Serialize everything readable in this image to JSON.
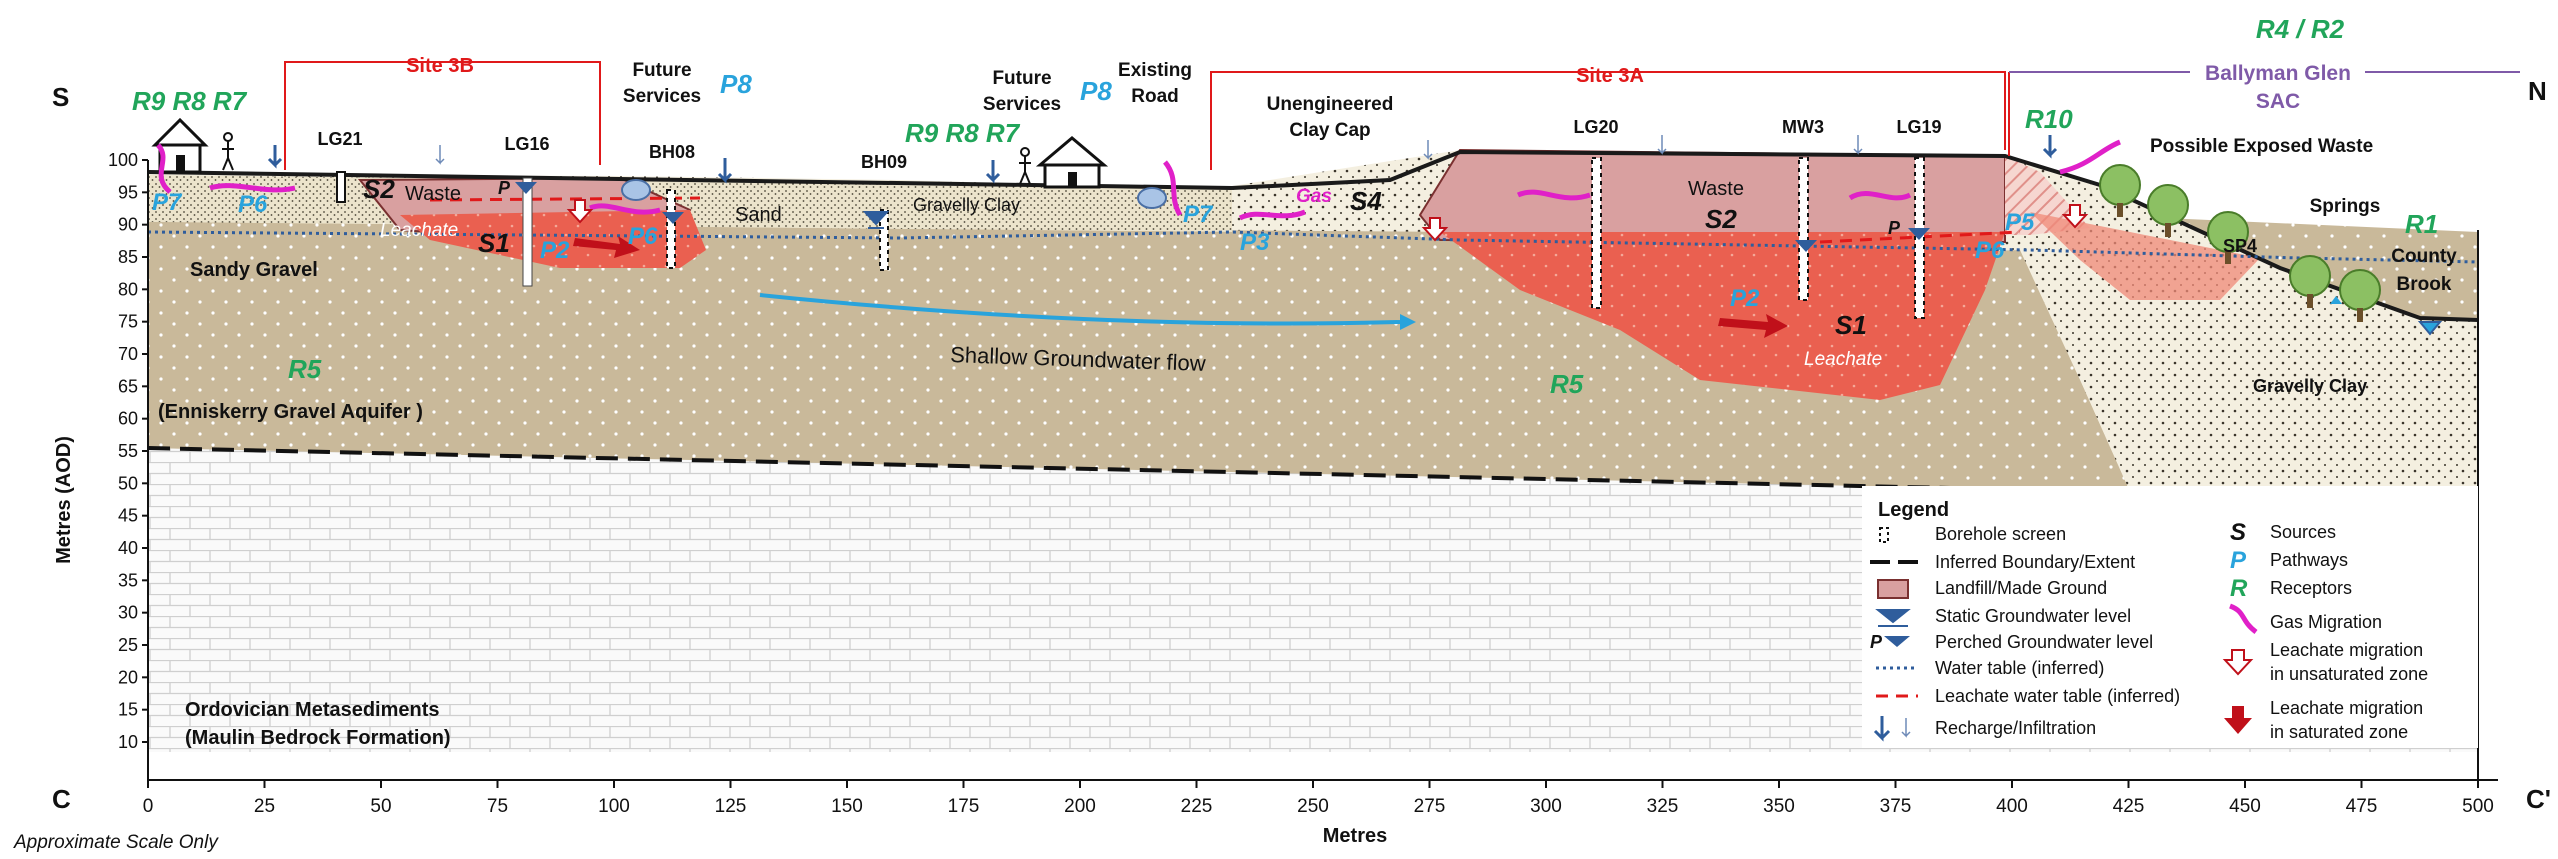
{
  "orientation": {
    "south": "S",
    "north": "N",
    "section_start": "C",
    "section_end": "C'"
  },
  "axes": {
    "ylabel": "Metres (AOD)",
    "xlabel": "Metres",
    "y_ticks": [
      10,
      15,
      20,
      25,
      30,
      35,
      40,
      45,
      50,
      55,
      60,
      65,
      70,
      75,
      80,
      85,
      90,
      95,
      100
    ],
    "x_ticks": [
      0,
      25,
      50,
      75,
      100,
      125,
      150,
      175,
      200,
      225,
      250,
      275,
      300,
      325,
      350,
      375,
      400,
      425,
      450,
      475,
      500
    ],
    "ylim": [
      10,
      100
    ],
    "xlim": [
      0,
      500
    ],
    "scale_note": "Approximate Scale Only"
  },
  "sites": {
    "site_3b": "Site 3B",
    "site_3a": "Site 3A"
  },
  "protected_area": {
    "receptor": "R4 / R2",
    "name_line1": "Ballyman Glen",
    "name_line2": "SAC"
  },
  "boreholes": {
    "lg21": "LG21",
    "lg16": "LG16",
    "bh08": "BH08",
    "bh09": "BH09",
    "lg20": "LG20",
    "mw3": "MW3",
    "lg19": "LG19",
    "sp4": "SP4"
  },
  "features": {
    "future_services_1_line1": "Future",
    "future_services_1_line2": "Services",
    "future_services_2_line1": "Future",
    "future_services_2_line2": "Services",
    "existing_road_line1": "Existing",
    "existing_road_line2": "Road",
    "clay_cap_line1": "Unengineered",
    "clay_cap_line2": "Clay Cap",
    "exposed_waste": "Possible Exposed Waste",
    "springs": "Springs",
    "county_brook_line1": "County",
    "county_brook_line2": "Brook"
  },
  "materials": {
    "waste_1": "Waste",
    "waste_2": "Waste",
    "sand": "Sand",
    "gravelly_clay_1": "Gravelly Clay",
    "sandy_gravel": "Sandy Gravel",
    "aquifer": "(Enniskerry Gravel Aquifer )",
    "gravelly_clay_2": "Gravelly Clay",
    "bedrock_line1": "Ordovician Metasediments",
    "bedrock_line2": "(Maulin Bedrock Formation)",
    "leachate_1": "Leachate",
    "leachate_2": "Leachate",
    "gas": "Gas",
    "gw_flow": "Shallow Groundwater flow"
  },
  "slp_labels": {
    "r_group_1": "R9 R8 R7",
    "r_group_2": "R9 R8 R7",
    "p8_1": "P8",
    "p8_2": "P8",
    "r10": "R10",
    "r1": "R1",
    "r5_1": "R5",
    "r5_2": "R5",
    "p7_1": "P7",
    "p6_1": "P6",
    "p2_1": "P2",
    "p6_2": "P6",
    "s2_1": "S2",
    "s1_1": "S1",
    "p7_2": "P7",
    "p3": "P3",
    "s4": "S4",
    "s2_2": "S2",
    "p2_2": "P2",
    "s1_2": "S1",
    "p5": "P5",
    "p6_3": "P6",
    "p_1": "P",
    "p_2": "P"
  },
  "legend": {
    "title": "Legend",
    "left": [
      "Borehole screen",
      "Inferred Boundary/Extent",
      "Landfill/Made Ground",
      "Static Groundwater level",
      "Perched Groundwater level",
      "Water table  (inferred)",
      "Leachate water table  (inferred)",
      "Recharge/Infiltration"
    ],
    "perched_symbol": "P",
    "right_symbols": [
      "S",
      "P",
      "R"
    ],
    "right": [
      "Sources",
      "Pathways",
      "Receptors",
      "Gas Migration",
      "Leachate migration",
      "in unsaturated zone",
      "Leachate migration",
      "in saturated zone"
    ]
  },
  "colors": {
    "aquifer": "#c9b99a",
    "drift": "#efe9d8",
    "waste": "#d9a0a0",
    "leachate": "#ea6050",
    "receptor": "#21a55a",
    "pathway": "#29a3dc",
    "site": "#e0191a",
    "sac": "#7f5aa8",
    "gas": "#e020c8",
    "water_level": "#2f5d9c"
  }
}
